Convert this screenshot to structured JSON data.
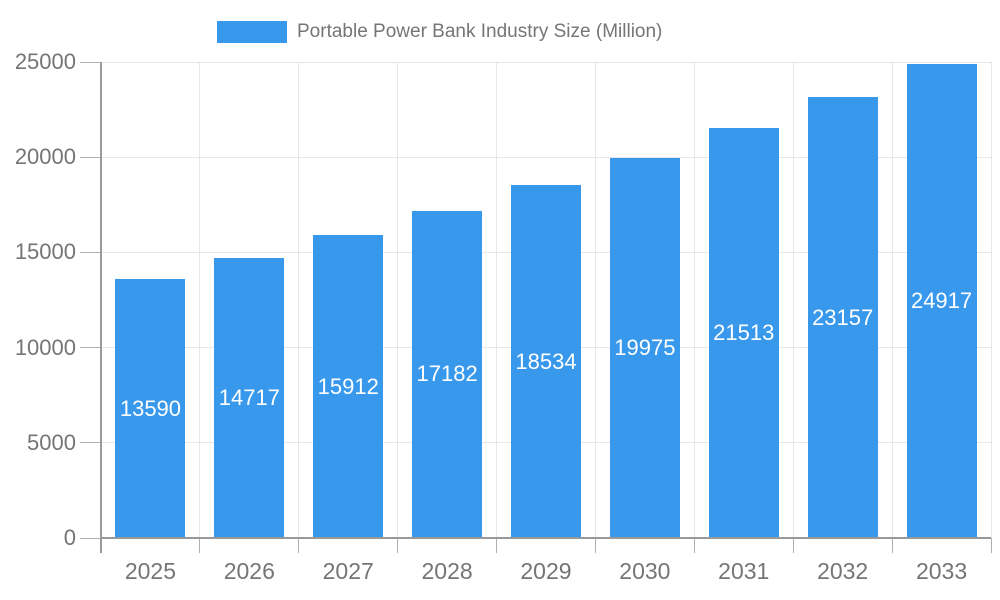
{
  "chart_data": {
    "type": "bar",
    "title": "Portable Power Bank Industry Size (Million)",
    "legend": {
      "position": "top",
      "entries": [
        "Portable Power Bank Industry Size (Million)"
      ]
    },
    "categories": [
      "2025",
      "2026",
      "2027",
      "2028",
      "2029",
      "2030",
      "2031",
      "2032",
      "2033"
    ],
    "series": [
      {
        "name": "Portable Power Bank Industry Size (Million)",
        "values": [
          13590,
          14717,
          15912,
          17182,
          18534,
          19975,
          21513,
          23157,
          24917
        ]
      }
    ],
    "value_labels": [
      "13590",
      "14717",
      "15912",
      "17182",
      "18534",
      "19975",
      "21513",
      "23157",
      "24917"
    ],
    "value_labels_position": "inside-center",
    "xlabel": "",
    "ylabel": "",
    "ylim": [
      0,
      25000
    ],
    "yticks": [
      0,
      5000,
      10000,
      15000,
      20000,
      25000
    ],
    "ytick_labels": [
      "0",
      "5000",
      "10000",
      "15000",
      "20000",
      "25000"
    ],
    "grid": true,
    "colors": {
      "bar": "#3898EC",
      "value_label": "#FFFFFF",
      "axis_text": "#757575",
      "gridline": "#E6E6E6",
      "axis_line": "#999999",
      "tick": "#B0B0B0",
      "background": "#FFFFFF"
    }
  }
}
